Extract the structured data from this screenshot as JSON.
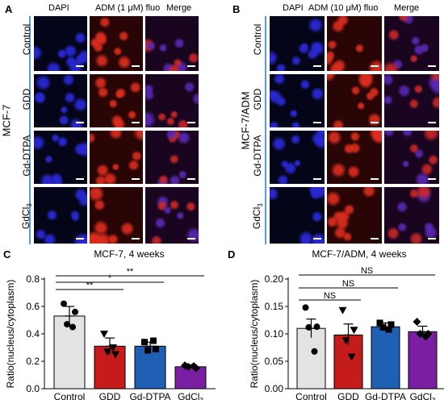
{
  "panels": {
    "A": {
      "label": "A",
      "group_label": "MCF-7",
      "columns": [
        "DAPI",
        "ADM (1 μM) fluo",
        "Merge"
      ],
      "rows": [
        "Control",
        "GDD",
        "Gd-DTPA",
        "GdCl3"
      ]
    },
    "B": {
      "label": "B",
      "group_label": "MCF-7/ADM",
      "columns": [
        "DAPI",
        "ADM (10 μM) fluo",
        "Merge"
      ],
      "rows": [
        "Control",
        "GDD",
        "Gd-DTPA",
        "GdCl3"
      ]
    },
    "C": {
      "label": "C"
    },
    "D": {
      "label": "D"
    }
  },
  "colors": {
    "Control": "#e3e3e3",
    "GDD": "#c51b1b",
    "Gd-DTPA": "#1f5fb4",
    "GdCl3": "#7b1fa2",
    "dapi": "#1a1aa8",
    "adm": "#c8281e",
    "divider": "#5b9bd5"
  },
  "chart_data": [
    {
      "type": "bar",
      "title": "MCF-7, 4 weeks",
      "ylabel": "Ratio(nucleus/cytoplasm)",
      "categories": [
        "Control",
        "GDD",
        "Gd-DTPA",
        "GdCl3"
      ],
      "values": [
        0.53,
        0.31,
        0.31,
        0.16
      ],
      "errors": [
        0.07,
        0.06,
        0.03,
        0.015
      ],
      "points": [
        [
          0.62,
          0.56,
          0.47,
          0.45
        ],
        [
          0.4,
          0.25,
          0.27,
          0.3
        ],
        [
          0.34,
          0.29,
          0.28,
          0.35
        ],
        [
          0.17,
          0.15,
          0.16,
          0.165
        ]
      ],
      "markers": [
        "circle",
        "triangle-down",
        "square",
        "diamond"
      ],
      "ylim": [
        0,
        0.8
      ],
      "yticks": [
        "0.0",
        "0.2",
        "0.4",
        "0.6",
        "0.8"
      ],
      "significance": [
        {
          "from": 0,
          "to": 1,
          "label": "**"
        },
        {
          "from": 0,
          "to": 2,
          "label": "*"
        },
        {
          "from": 0,
          "to": 3,
          "label": "**"
        }
      ]
    },
    {
      "type": "bar",
      "title": "MCF-7/ADM, 4 weeks",
      "ylabel": "Ratio(nucleus/cytoplasm)",
      "categories": [
        "Control",
        "GDD",
        "Gd-DTPA",
        "GdCl3"
      ],
      "values": [
        0.11,
        0.098,
        0.113,
        0.104
      ],
      "errors": [
        0.017,
        0.02,
        0.007,
        0.01
      ],
      "points": [
        [
          0.148,
          0.113,
          0.112,
          0.068
        ],
        [
          0.143,
          0.107,
          0.088,
          0.058
        ],
        [
          0.12,
          0.117,
          0.112,
          0.108
        ],
        [
          0.122,
          0.1,
          0.1,
          0.095
        ]
      ],
      "markers": [
        "circle",
        "triangle-down",
        "square",
        "diamond"
      ],
      "ylim": [
        0,
        0.2
      ],
      "yticks": [
        "0.00",
        "0.05",
        "0.10",
        "0.15",
        "0.20"
      ],
      "significance": [
        {
          "from": 0,
          "to": 1,
          "label": "NS"
        },
        {
          "from": 0,
          "to": 2,
          "label": "NS"
        },
        {
          "from": 0,
          "to": 3,
          "label": "NS"
        }
      ]
    }
  ]
}
